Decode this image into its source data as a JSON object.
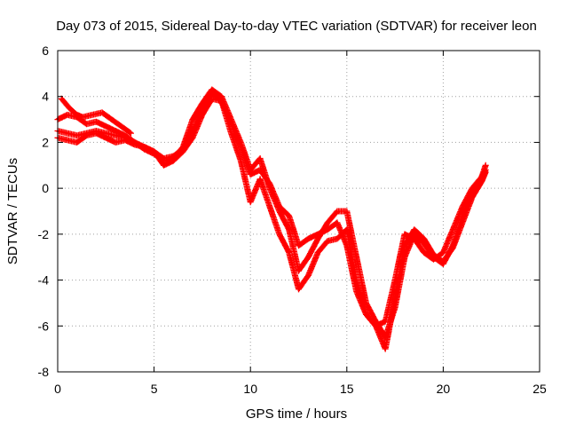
{
  "chart_data": {
    "type": "scatter",
    "title": "Day 073 of 2015, Sidereal Day-to-day VTEC variation (SDTVAR) for receiver leon",
    "xlabel": "GPS time / hours",
    "ylabel": "SDTVAR / TECUs",
    "xlim": [
      0,
      25
    ],
    "ylim": [
      -8,
      6
    ],
    "xticks": [
      "0",
      "5",
      "10",
      "15",
      "20",
      "25"
    ],
    "yticks": [
      "-8",
      "-6",
      "-4",
      "-2",
      "0",
      "2",
      "4",
      "6"
    ],
    "grid": true,
    "marker": "+",
    "series_color": "#ff0000",
    "series": [
      {
        "x": [
          0.0,
          0.5,
          1.0,
          1.5,
          2.0,
          2.5,
          3.0,
          3.5,
          4.0,
          4.5,
          5.0,
          5.5,
          6.0,
          6.5,
          7.0,
          7.5,
          8.0,
          8.3,
          8.6,
          9.0,
          9.5,
          10.0,
          10.5,
          11.0,
          11.5,
          12.0,
          12.5,
          13.0,
          13.5,
          14.0,
          14.5,
          15.0,
          15.5,
          16.0,
          16.5,
          17.0,
          17.5,
          18.0,
          18.5,
          19.0,
          19.5,
          20.0,
          20.5,
          21.0,
          21.5,
          22.0,
          22.2
        ],
        "y": [
          2.5,
          2.4,
          2.3,
          2.4,
          2.5,
          2.4,
          2.3,
          2.2,
          2.0,
          1.8,
          1.6,
          1.3,
          1.4,
          1.7,
          2.5,
          3.5,
          4.1,
          4.0,
          3.6,
          2.8,
          1.8,
          0.6,
          0.8,
          0.2,
          -0.8,
          -1.2,
          -2.5,
          -2.2,
          -2.0,
          -1.8,
          -1.5,
          -2.5,
          -4.5,
          -5.5,
          -6.0,
          -5.8,
          -4.0,
          -2.0,
          -2.2,
          -2.8,
          -3.1,
          -2.8,
          -1.8,
          -0.8,
          0.0,
          0.5,
          0.8
        ]
      },
      {
        "x": [
          0.0,
          0.5,
          1.0,
          1.5,
          2.0,
          2.5,
          3.0,
          3.5,
          4.0,
          4.5,
          5.0,
          5.5,
          6.0,
          6.5,
          7.0,
          7.5,
          8.0,
          8.5,
          9.0,
          9.5,
          10.0,
          10.5,
          11.0,
          11.5,
          12.0,
          12.5,
          13.0,
          13.5,
          14.0,
          14.5,
          15.0,
          15.5,
          16.0,
          16.5,
          17.0,
          17.5,
          18.0,
          18.5,
          19.0,
          19.5,
          20.0,
          20.5,
          21.0,
          21.5,
          22.0,
          22.2
        ],
        "y": [
          3.0,
          3.2,
          3.1,
          2.8,
          2.9,
          2.7,
          2.5,
          2.3,
          2.0,
          1.7,
          1.5,
          1.2,
          1.3,
          1.8,
          3.0,
          3.7,
          4.3,
          4.0,
          3.0,
          2.0,
          0.8,
          1.3,
          0.0,
          -1.0,
          -1.8,
          -3.6,
          -3.0,
          -2.2,
          -1.5,
          -1.0,
          -1.0,
          -3.0,
          -5.0,
          -5.8,
          -6.5,
          -5.2,
          -3.0,
          -2.0,
          -2.4,
          -3.0,
          -3.3,
          -2.5,
          -1.2,
          -0.2,
          0.5,
          1.0
        ]
      },
      {
        "x": [
          0.0,
          0.5,
          1.0,
          1.5,
          2.0,
          2.5,
          3.0,
          3.5,
          4.0,
          4.5,
          5.0,
          5.5,
          6.0,
          6.5,
          7.0,
          7.5,
          8.0,
          8.5,
          9.0,
          9.5,
          10.0,
          10.5,
          11.0,
          11.5,
          12.0,
          12.5,
          13.0,
          13.5,
          14.0,
          14.5,
          15.0,
          15.5,
          16.0,
          16.5,
          17.0,
          17.5,
          18.0,
          18.5,
          19.0,
          19.5,
          20.0,
          20.5,
          21.0,
          21.5,
          22.0,
          22.2
        ],
        "y": [
          2.2,
          2.1,
          2.0,
          2.3,
          2.4,
          2.2,
          2.0,
          2.1,
          1.9,
          1.8,
          1.6,
          1.0,
          1.2,
          1.6,
          2.2,
          3.2,
          3.9,
          3.8,
          2.4,
          1.2,
          -0.6,
          0.4,
          -0.8,
          -2.0,
          -2.8,
          -4.4,
          -3.8,
          -2.8,
          -2.3,
          -2.2,
          -1.8,
          -4.0,
          -5.5,
          -6.0,
          -7.0,
          -4.8,
          -2.5,
          -1.8,
          -2.2,
          -2.9,
          -3.2,
          -2.6,
          -1.5,
          -0.4,
          0.3,
          0.7
        ]
      },
      {
        "x": [
          0.2,
          0.6,
          1.0,
          1.3,
          2.3,
          2.8,
          3.3,
          3.8
        ],
        "y": [
          3.9,
          3.5,
          3.2,
          3.1,
          3.3,
          3.0,
          2.7,
          2.4
        ]
      }
    ]
  }
}
